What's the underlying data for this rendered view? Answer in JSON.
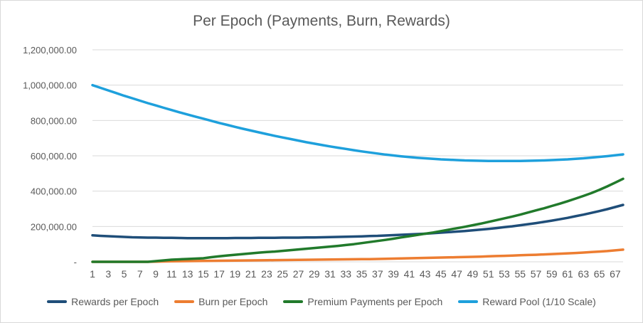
{
  "chart_data": {
    "type": "line",
    "title": "Per Epoch (Payments, Burn, Rewards)",
    "xlabel": "",
    "ylabel": "",
    "x": [
      1,
      2,
      3,
      4,
      5,
      6,
      7,
      8,
      9,
      10,
      11,
      12,
      13,
      14,
      15,
      16,
      17,
      18,
      19,
      20,
      21,
      22,
      23,
      24,
      25,
      26,
      27,
      28,
      29,
      30,
      31,
      32,
      33,
      34,
      35,
      36,
      37,
      38,
      39,
      40,
      41,
      42,
      43,
      44,
      45,
      46,
      47,
      48,
      49,
      50,
      51,
      52,
      53,
      54,
      55,
      56,
      57,
      58,
      59,
      60,
      61,
      62,
      63,
      64,
      65,
      66,
      67,
      68
    ],
    "x_tick_labels": [
      "1",
      "3",
      "5",
      "7",
      "9",
      "11",
      "13",
      "15",
      "17",
      "19",
      "21",
      "23",
      "25",
      "27",
      "29",
      "31",
      "33",
      "35",
      "37",
      "39",
      "41",
      "43",
      "45",
      "47",
      "49",
      "51",
      "53",
      "55",
      "57",
      "59",
      "61",
      "63",
      "65",
      "67"
    ],
    "ylim": [
      0,
      1200000
    ],
    "y_ticks": [
      0,
      200000,
      400000,
      600000,
      800000,
      1000000,
      1200000
    ],
    "y_tick_labels": [
      "-",
      "200,000.00",
      "400,000.00",
      "600,000.00",
      "800,000.00",
      "1,000,000.00",
      "1,200,000.00"
    ],
    "grid": true,
    "legend_position": "bottom",
    "series": [
      {
        "name": "Rewards per Epoch",
        "color": "#1f4e79",
        "values": [
          150000,
          147000,
          145000,
          143000,
          141000,
          139000,
          138000,
          137000,
          137000,
          136000,
          136000,
          135000,
          134000,
          134000,
          134000,
          134000,
          134000,
          134000,
          135000,
          135000,
          135000,
          136000,
          136000,
          136000,
          137000,
          137000,
          137000,
          138000,
          138000,
          139000,
          140000,
          141000,
          142000,
          143000,
          144000,
          146000,
          147000,
          149000,
          151000,
          153000,
          155000,
          157000,
          159000,
          162000,
          165000,
          168000,
          171000,
          174000,
          178000,
          182000,
          186000,
          191000,
          196000,
          201000,
          207000,
          213000,
          219000,
          226000,
          233000,
          241000,
          249000,
          258000,
          267000,
          277000,
          287000,
          298000,
          310000,
          322000
        ]
      },
      {
        "name": "Burn per Epoch",
        "color": "#ed7d31",
        "values": [
          0,
          0,
          0,
          0,
          0,
          0,
          0,
          0,
          1000,
          2000,
          3000,
          3500,
          4000,
          4500,
          5000,
          5500,
          6000,
          6500,
          7000,
          7500,
          8000,
          8500,
          9000,
          9500,
          10000,
          10500,
          11000,
          11500,
          12000,
          12500,
          13000,
          13500,
          14000,
          14500,
          15000,
          15500,
          16000,
          17000,
          18000,
          19000,
          20000,
          21000,
          22000,
          23000,
          24000,
          25000,
          26000,
          27000,
          28000,
          29500,
          31000,
          32500,
          34000,
          35500,
          37000,
          38500,
          40000,
          42000,
          44000,
          46000,
          48000,
          50000,
          52500,
          55000,
          58000,
          61000,
          65000,
          69000
        ]
      },
      {
        "name": "Premium Payments per Epoch",
        "color": "#217a2b",
        "values": [
          0,
          0,
          0,
          0,
          0,
          0,
          0,
          0,
          4000,
          8000,
          12000,
          14000,
          16000,
          18000,
          20000,
          26000,
          31000,
          36000,
          40000,
          44000,
          48000,
          52000,
          55000,
          58000,
          62000,
          66000,
          70000,
          74000,
          78000,
          82000,
          86000,
          90000,
          95000,
          100000,
          106000,
          112000,
          118000,
          124000,
          131000,
          138000,
          145000,
          152000,
          159000,
          166000,
          174000,
          182000,
          190000,
          198000,
          207000,
          216000,
          226000,
          236000,
          246000,
          256000,
          267000,
          279000,
          291000,
          303000,
          316000,
          329000,
          343000,
          358000,
          373000,
          389000,
          407000,
          427000,
          448000,
          470000
        ]
      },
      {
        "name": "Reward Pool (1/10 Scale)",
        "color": "#1ea0dc",
        "values": [
          1000000,
          985000,
          970000,
          955000,
          940000,
          926000,
          912000,
          898000,
          885000,
          872000,
          859000,
          846000,
          834000,
          822000,
          810000,
          798000,
          786000,
          775000,
          764000,
          753000,
          743000,
          733000,
          723000,
          713000,
          704000,
          695000,
          686000,
          677000,
          669000,
          661000,
          653000,
          646000,
          639000,
          632000,
          625000,
          619000,
          613000,
          607000,
          602000,
          597000,
          593000,
          589000,
          586000,
          583000,
          580000,
          578000,
          576000,
          574000,
          573000,
          572000,
          571000,
          571000,
          571000,
          571000,
          571000,
          572000,
          573000,
          574000,
          576000,
          578000,
          580000,
          583000,
          586000,
          590000,
          594000,
          598000,
          603000,
          608000
        ]
      }
    ]
  }
}
